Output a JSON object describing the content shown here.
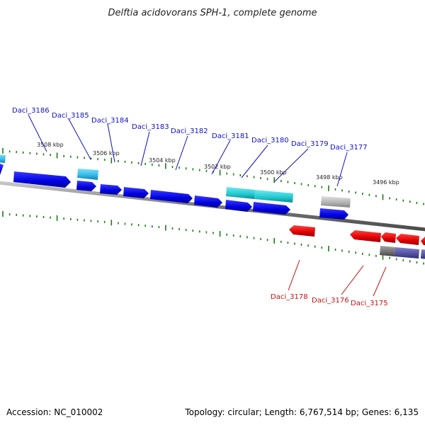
{
  "title": "Delftia acidovorans SPH-1, complete genome",
  "footer": {
    "accession": "Accession: NC_010002",
    "summary": "Topology: circular; Length: 6,767,514 bp; Genes: 6,135"
  },
  "tick_labels": [
    "3508 kbp",
    "3506 kbp",
    "3504 kbp",
    "3502 kbp",
    "3500 kbp",
    "3498 kbp",
    "3496 kbp"
  ],
  "genes_forward": [
    "Daci_3186",
    "Daci_3185",
    "Daci_3184",
    "Daci_3183",
    "Daci_3182",
    "Daci_3181",
    "Daci_3180",
    "Daci_3179",
    "Daci_3177"
  ],
  "genes_reverse": [
    "Daci_3178",
    "Daci_3176",
    "Daci_3175"
  ],
  "colors": {
    "forward_gene": "#0000e0",
    "reverse_gene": "#e00000",
    "cyan_feature": "#20c8d0",
    "gray_feature": "#b0b0b0",
    "dark_gray_feature": "#707070",
    "slate_feature": "#5050a0",
    "tick": "#1a7a1a",
    "backbone": "#7a7a7a",
    "label_forward": "#1010c8",
    "label_reverse": "#c81010"
  }
}
